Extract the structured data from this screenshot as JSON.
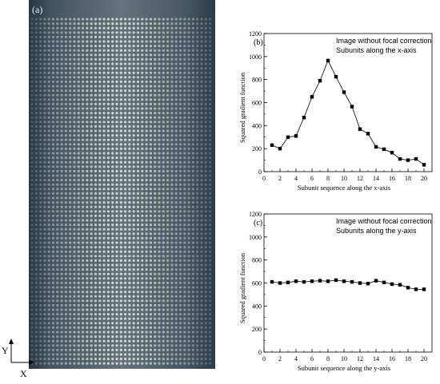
{
  "panel_a": {
    "label": "(a)",
    "axis_y_label": "Y",
    "axis_x_label": "X",
    "background_color": "#3a4a58",
    "spot_color": "#dfe6d2"
  },
  "chart_data": [
    {
      "type": "line",
      "panel_label": "(b)",
      "legend": [
        "Image without focal correction",
        "Subunits along the x-axis"
      ],
      "legend_placement": "top-right",
      "xlabel": "Subunit sequence along the x-axis",
      "ylabel": "Squared gradient function",
      "xlim": [
        0,
        21
      ],
      "ylim": [
        0,
        1200
      ],
      "xticks": [
        0,
        2,
        4,
        6,
        8,
        10,
        12,
        14,
        16,
        18,
        20
      ],
      "yticks": [
        0,
        200,
        400,
        600,
        800,
        1000,
        1200
      ],
      "marker": "square",
      "grid": false,
      "x": [
        1,
        2,
        3,
        4,
        5,
        6,
        7,
        8,
        9,
        10,
        11,
        12,
        13,
        14,
        15,
        16,
        17,
        18,
        19,
        20
      ],
      "y": [
        230,
        200,
        300,
        310,
        470,
        650,
        790,
        965,
        825,
        690,
        565,
        370,
        330,
        215,
        195,
        165,
        110,
        100,
        110,
        60
      ]
    },
    {
      "type": "line",
      "panel_label": "(c)",
      "legend": [
        "Image without focal correction",
        "Subunits along the y-axis"
      ],
      "legend_placement": "top-right",
      "xlabel": "Subunit sequence along the y-axis",
      "ylabel": "Squared gradient function",
      "xlim": [
        0,
        21
      ],
      "ylim": [
        0,
        1200
      ],
      "xticks": [
        0,
        2,
        4,
        6,
        8,
        10,
        12,
        14,
        16,
        18,
        20
      ],
      "yticks": [
        0,
        200,
        400,
        600,
        800,
        1000,
        1200
      ],
      "marker": "square",
      "grid": false,
      "x": [
        1,
        2,
        3,
        4,
        5,
        6,
        7,
        8,
        9,
        10,
        11,
        12,
        13,
        14,
        15,
        16,
        17,
        18,
        19,
        20
      ],
      "y": [
        610,
        600,
        605,
        615,
        610,
        615,
        620,
        615,
        625,
        615,
        610,
        600,
        595,
        620,
        605,
        590,
        585,
        560,
        545,
        545
      ]
    }
  ]
}
